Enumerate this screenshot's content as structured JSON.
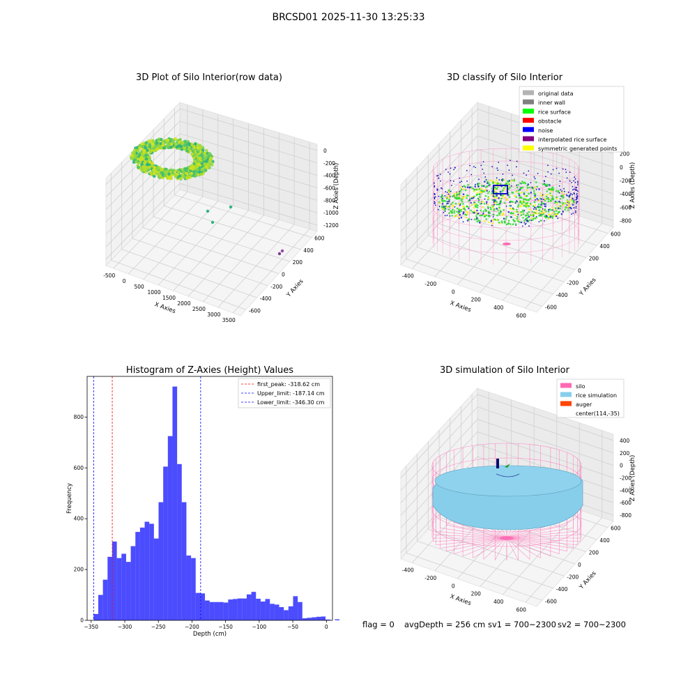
{
  "figure": {
    "suptitle": "BRCSD01 2025-11-30 13:25:33",
    "footer": {
      "flag": "flag = 0",
      "avg_depth": "avgDepth = 256 cm",
      "sv1": "sv1 = 700~2300",
      "sv2": "sv2 = 700~2300"
    }
  },
  "chart_data": [
    {
      "type": "scatter",
      "title": "3D Plot of Silo Interior(row data)",
      "xlabel": "X Axies",
      "ylabel": "Y Axies",
      "zlabel": "Z Axies (Depth)",
      "x_ticks": [
        "-500",
        "0",
        "500",
        "1000",
        "1500",
        "2000",
        "2500",
        "3000",
        "3500"
      ],
      "y_ticks": [
        "-600",
        "-400",
        "-200",
        "0",
        "200",
        "400",
        "600"
      ],
      "z_ticks": [
        "0",
        "-200",
        "-400",
        "-600",
        "-800",
        "-1000",
        "-1200"
      ],
      "xlim": [
        -600,
        3600
      ],
      "ylim": [
        -650,
        650
      ],
      "zlim": [
        -1300,
        50
      ],
      "grid": true,
      "colormap": "viridis"
    },
    {
      "type": "scatter",
      "title": "3D classify of Silo Interior",
      "xlabel": "X Axies",
      "ylabel": "Y Axies",
      "zlabel": "Z Axies (Depth)",
      "x_ticks": [
        "-400",
        "-200",
        "0",
        "200",
        "400",
        "600"
      ],
      "y_ticks": [
        "-600",
        "-400",
        "-200",
        "0",
        "200",
        "400",
        "600"
      ],
      "z_ticks": [
        "200",
        "0",
        "-200",
        "-400",
        "-600",
        "-800"
      ],
      "legend": [
        {
          "label": "original data",
          "color": "#b3b3b3"
        },
        {
          "label": "inner wall",
          "color": "#808080"
        },
        {
          "label": "rice surface",
          "color": "#00ff00"
        },
        {
          "label": "obstacle",
          "color": "#ff0000"
        },
        {
          "label": "noise",
          "color": "#0000ff"
        },
        {
          "label": "interpolated rice surface",
          "color": "#800080"
        },
        {
          "label": "symmetric generated points",
          "color": "#ffff00"
        }
      ],
      "legend_position": "top-right",
      "grid": true
    },
    {
      "type": "bar",
      "title": "Histogram of Z-Axies (Height) Values",
      "xlabel": "Depth (cm)",
      "ylabel": "Frequency",
      "x_ticks": [
        -350,
        -300,
        -250,
        -200,
        -150,
        -100,
        -50,
        0
      ],
      "y_ticks": [
        0,
        200,
        400,
        600,
        800
      ],
      "xlim": [
        -356,
        9
      ],
      "ylim": [
        0,
        960
      ],
      "bin_width": 6.9,
      "bin_start": -346.3,
      "values": [
        25,
        100,
        160,
        250,
        310,
        245,
        262,
        230,
        292,
        348,
        365,
        388,
        380,
        322,
        465,
        605,
        725,
        920,
        615,
        465,
        255,
        245,
        108,
        106,
        78,
        72,
        72,
        72,
        70,
        82,
        84,
        86,
        86,
        102,
        112,
        85,
        74,
        84,
        65,
        62,
        52,
        40,
        55,
        95,
        72,
        8,
        10,
        12,
        14,
        15,
        3,
        0,
        4
      ],
      "bar_color": "#0000ff",
      "bar_opacity": 0.7,
      "vlines": [
        {
          "label": "first_peak: -318.62 cm",
          "value": -318.62,
          "color": "#ff0000"
        },
        {
          "label": "Upper_limit: -187.14 cm",
          "value": -187.14,
          "color": "#0000ff"
        },
        {
          "label": "Lower_limit: -346.30 cm",
          "value": -346.3,
          "color": "#0000ff"
        }
      ],
      "legend_position": "top-right"
    },
    {
      "type": "area",
      "title": "3D simulation of Silo Interior",
      "xlabel": "X Axies",
      "ylabel": "Y Axies",
      "zlabel": "Z Axies (Depth)",
      "x_ticks": [
        "-400",
        "-200",
        "0",
        "200",
        "400",
        "600"
      ],
      "y_ticks": [
        "-600",
        "-400",
        "-200",
        "0",
        "200",
        "400",
        "600"
      ],
      "z_ticks": [
        "400",
        "200",
        "0",
        "-200",
        "-400",
        "-600",
        "-800"
      ],
      "legend": [
        {
          "label": "silo",
          "color": "#ff69b4"
        },
        {
          "label": "rice simulation",
          "color": "#87ceeb"
        },
        {
          "label": "auger",
          "color": "#ff4500"
        },
        {
          "label": "center(114,-35)",
          "color": ""
        }
      ],
      "legend_position": "top-right",
      "grid": true
    }
  ]
}
